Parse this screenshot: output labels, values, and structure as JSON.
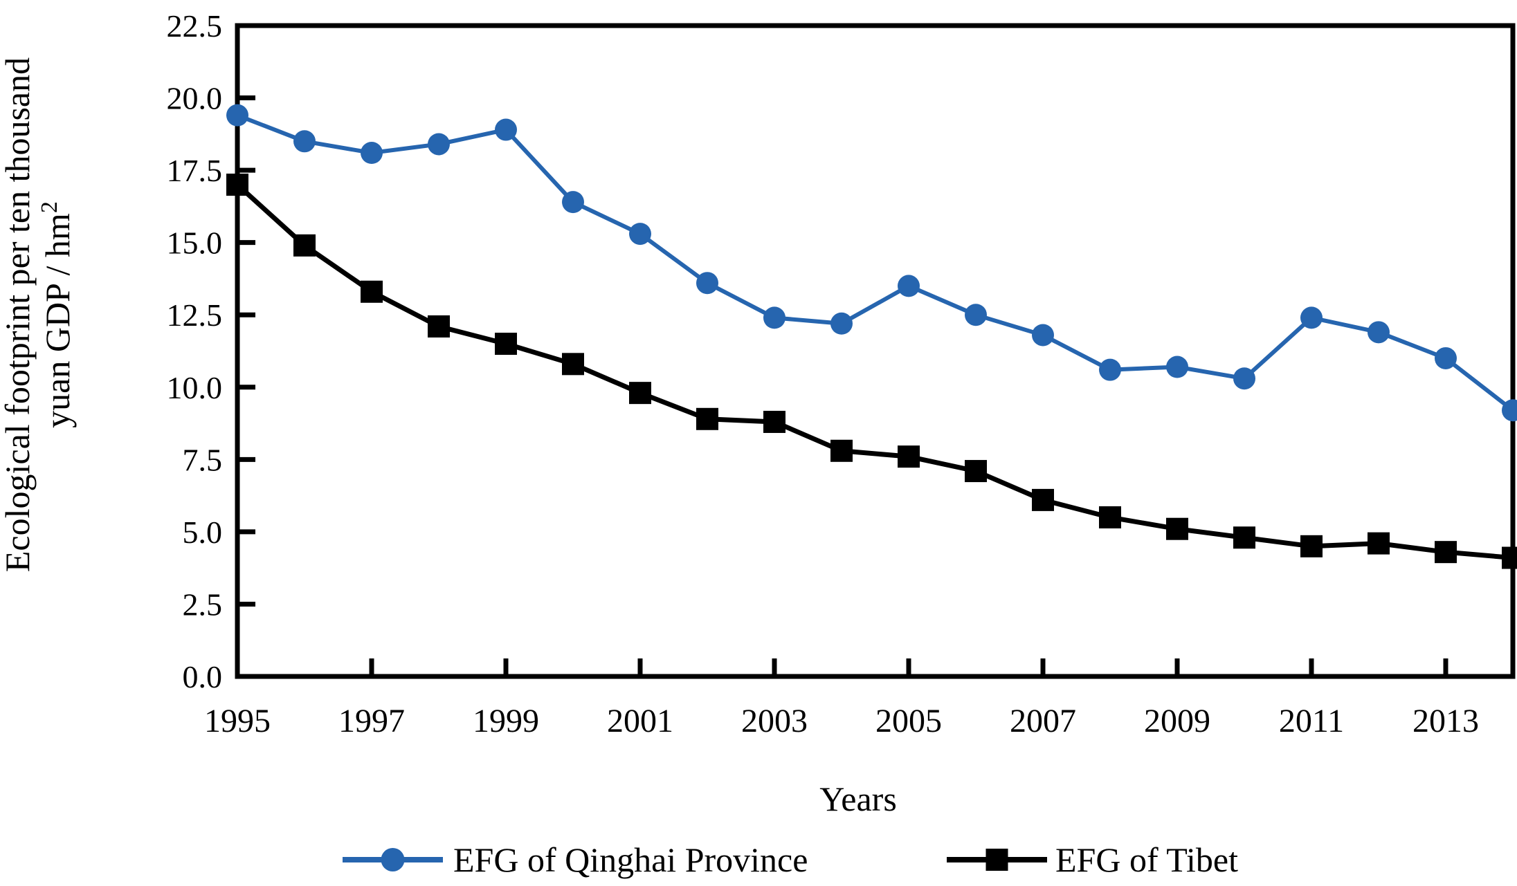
{
  "chart_data": {
    "type": "line",
    "title": "",
    "xlabel": "Years",
    "ylabel": "Ecological footprint per ten thousand yuan GDP / hm2",
    "ylabel_line1": "Ecological footprint per ten thousand",
    "ylabel_line2": "yuan GDP / hm",
    "ylabel_superscript": "2",
    "x": [
      1995,
      1996,
      1997,
      1998,
      1999,
      2000,
      2001,
      2002,
      2003,
      2004,
      2005,
      2006,
      2007,
      2008,
      2009,
      2010,
      2011,
      2012,
      2013,
      2014
    ],
    "xlim": [
      1995,
      2014
    ],
    "ylim": [
      0,
      22.5
    ],
    "y_ticks": [
      "0.0",
      "2.5",
      "5.0",
      "7.5",
      "10.0",
      "12.5",
      "15.0",
      "17.5",
      "20.0",
      "22.5"
    ],
    "x_tick_years": [
      1997,
      1999,
      2001,
      2003,
      2005,
      2007,
      2009,
      2011,
      2013
    ],
    "x_label_years": [
      1995,
      1997,
      1999,
      2001,
      2003,
      2005,
      2007,
      2009,
      2011,
      2013
    ],
    "grid": false,
    "legend_position": "bottom",
    "frame_color": "#000000",
    "background_color": "#ffffff",
    "series": [
      {
        "name": "EFG of Qinghai Province",
        "marker": "circle",
        "color": "#2665af",
        "values": [
          19.4,
          18.5,
          18.1,
          18.4,
          18.9,
          16.4,
          15.3,
          13.6,
          12.4,
          12.2,
          13.5,
          12.5,
          11.8,
          10.6,
          10.7,
          10.3,
          12.4,
          11.9,
          11.0,
          9.2
        ]
      },
      {
        "name": "EFG of Tibet",
        "marker": "square",
        "color": "#000000",
        "values": [
          17.0,
          14.9,
          13.3,
          12.1,
          11.5,
          10.8,
          9.8,
          8.9,
          8.8,
          7.8,
          7.6,
          7.1,
          6.1,
          5.5,
          5.1,
          4.8,
          4.5,
          4.6,
          4.3,
          4.1
        ]
      }
    ]
  }
}
